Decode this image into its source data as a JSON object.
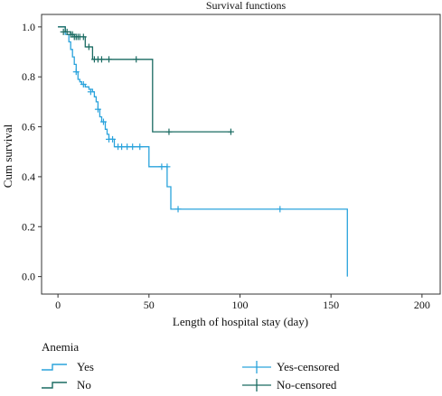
{
  "chart_data": {
    "type": "line",
    "title": "Survival functions",
    "xlabel": "Length of hospital stay (day)",
    "ylabel": "Cum survival",
    "xlim": [
      -9,
      210
    ],
    "ylim": [
      -0.07,
      1.05
    ],
    "x_ticks": [
      0,
      50,
      100,
      150,
      200
    ],
    "y_ticks": [
      0.0,
      0.2,
      0.4,
      0.6,
      0.8,
      1.0
    ],
    "x_tick_labels": [
      "0",
      "50",
      "100",
      "150",
      "200"
    ],
    "y_tick_labels": [
      "0.0",
      "0.2",
      "0.4",
      "0.6",
      "0.8",
      "1.0"
    ],
    "grid": false,
    "legend_title": "Anemia",
    "legend_position": "bottom",
    "series": [
      {
        "name": "Yes",
        "censored_label": "Yes-censored",
        "color": "#2aa3dc",
        "steps": [
          [
            0,
            1.0
          ],
          [
            4,
            0.97
          ],
          [
            6,
            0.94
          ],
          [
            7,
            0.91
          ],
          [
            8,
            0.88
          ],
          [
            9,
            0.85
          ],
          [
            10,
            0.82
          ],
          [
            11,
            0.79
          ],
          [
            12,
            0.78
          ],
          [
            13,
            0.77
          ],
          [
            15,
            0.76
          ],
          [
            17,
            0.75
          ],
          [
            19,
            0.74
          ],
          [
            20,
            0.72
          ],
          [
            21,
            0.7
          ],
          [
            22,
            0.67
          ],
          [
            23,
            0.64
          ],
          [
            24,
            0.62
          ],
          [
            26,
            0.59
          ],
          [
            27,
            0.57
          ],
          [
            28,
            0.55
          ],
          [
            31,
            0.52
          ],
          [
            50,
            0.44
          ],
          [
            60,
            0.36
          ],
          [
            62,
            0.27
          ],
          [
            159,
            0.0
          ]
        ],
        "censored": [
          [
            10,
            0.82
          ],
          [
            14,
            0.77
          ],
          [
            18,
            0.74
          ],
          [
            22,
            0.67
          ],
          [
            25,
            0.62
          ],
          [
            28,
            0.55
          ],
          [
            30,
            0.55
          ],
          [
            33,
            0.52
          ],
          [
            35,
            0.52
          ],
          [
            38,
            0.52
          ],
          [
            41,
            0.52
          ],
          [
            45,
            0.52
          ],
          [
            57,
            0.44
          ],
          [
            60,
            0.44
          ],
          [
            66,
            0.27
          ],
          [
            122,
            0.27
          ]
        ],
        "end_x": 159
      },
      {
        "name": "No",
        "censored_label": "No-censored",
        "color": "#1a6b62",
        "steps": [
          [
            0,
            1.0
          ],
          [
            4,
            0.98
          ],
          [
            7,
            0.97
          ],
          [
            9,
            0.96
          ],
          [
            15,
            0.92
          ],
          [
            19,
            0.87
          ],
          [
            52,
            0.58
          ]
        ],
        "censored": [
          [
            3,
            0.98
          ],
          [
            5,
            0.98
          ],
          [
            7,
            0.97
          ],
          [
            8,
            0.97
          ],
          [
            9,
            0.96
          ],
          [
            10,
            0.96
          ],
          [
            11,
            0.96
          ],
          [
            12,
            0.96
          ],
          [
            14,
            0.96
          ],
          [
            17,
            0.92
          ],
          [
            20,
            0.87
          ],
          [
            22,
            0.87
          ],
          [
            24,
            0.87
          ],
          [
            28,
            0.87
          ],
          [
            43,
            0.87
          ],
          [
            61,
            0.58
          ],
          [
            95,
            0.58
          ]
        ],
        "end_x": 95
      }
    ]
  }
}
